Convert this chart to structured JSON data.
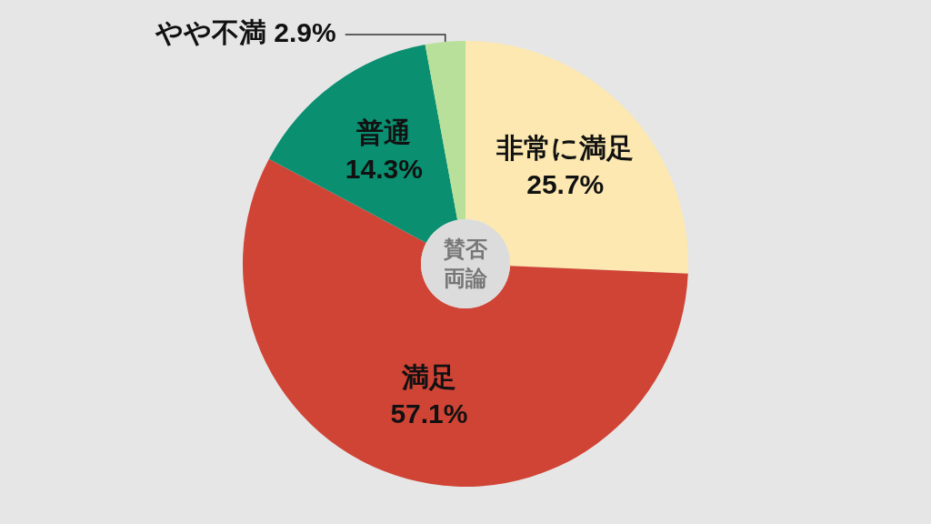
{
  "chart_data": {
    "type": "donut",
    "title": "賛否両論",
    "categories": [
      "非常に満足",
      "満足",
      "普通",
      "やや不満"
    ],
    "values": [
      25.7,
      57.1,
      14.3,
      2.9
    ],
    "value_labels": [
      "25.7%",
      "57.1%",
      "14.3%",
      "2.9%"
    ],
    "colors": [
      "#fce8b0",
      "#d04436",
      "#0a8f70",
      "#b8e09a"
    ],
    "legend": false
  }
}
